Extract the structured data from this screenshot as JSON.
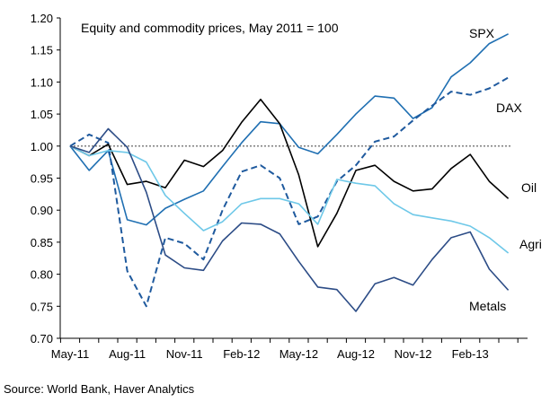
{
  "source": "Source: World Bank, Haver Analytics",
  "chart_data": {
    "type": "line",
    "title": "Equity and commodity prices, May 2011 = 100",
    "xlabel": "",
    "ylabel": "",
    "ylim": [
      0.7,
      1.2
    ],
    "yticks": [
      "0.70",
      "0.75",
      "0.80",
      "0.85",
      "0.90",
      "0.95",
      "1.00",
      "1.05",
      "1.10",
      "1.15",
      "1.20"
    ],
    "xticks": [
      "May-11",
      "Aug-11",
      "Nov-11",
      "Feb-12",
      "May-12",
      "Aug-12",
      "Nov-12",
      "Feb-13"
    ],
    "grid": false,
    "reference_line": 1.0,
    "x": [
      "2011-05",
      "2011-06",
      "2011-07",
      "2011-08",
      "2011-09",
      "2011-10",
      "2011-11",
      "2011-12",
      "2012-01",
      "2012-02",
      "2012-03",
      "2012-04",
      "2012-05",
      "2012-06",
      "2012-07",
      "2012-08",
      "2012-09",
      "2012-10",
      "2012-11",
      "2012-12",
      "2013-01",
      "2013-02",
      "2013-03",
      "2013-04"
    ],
    "series": [
      {
        "name": "SPX",
        "color": "#1f6fb2",
        "dash": false,
        "values": [
          1.0,
          0.962,
          0.993,
          0.885,
          0.877,
          0.903,
          0.917,
          0.93,
          0.968,
          1.005,
          1.038,
          1.035,
          0.998,
          0.988,
          1.018,
          1.05,
          1.078,
          1.075,
          1.043,
          1.06,
          1.108,
          1.13,
          1.16,
          1.175
        ]
      },
      {
        "name": "DAX",
        "color": "#1f5a9e",
        "dash": true,
        "values": [
          1.0,
          1.018,
          1.005,
          0.805,
          0.75,
          0.857,
          0.848,
          0.823,
          0.9,
          0.96,
          0.97,
          0.95,
          0.878,
          0.89,
          0.945,
          0.97,
          1.007,
          1.015,
          1.04,
          1.063,
          1.085,
          1.08,
          1.09,
          1.107
        ]
      },
      {
        "name": "Oil",
        "color": "#000000",
        "dash": false,
        "values": [
          1.0,
          0.985,
          1.003,
          0.94,
          0.945,
          0.935,
          0.978,
          0.968,
          0.993,
          1.037,
          1.073,
          1.035,
          0.955,
          0.843,
          0.895,
          0.962,
          0.97,
          0.945,
          0.93,
          0.933,
          0.965,
          0.987,
          0.945,
          0.918
        ]
      },
      {
        "name": "Agri",
        "color": "#6ec8e8",
        "dash": false,
        "values": [
          1.0,
          0.985,
          0.993,
          0.99,
          0.975,
          0.923,
          0.895,
          0.868,
          0.882,
          0.91,
          0.918,
          0.918,
          0.91,
          0.878,
          0.948,
          0.942,
          0.938,
          0.91,
          0.893,
          0.888,
          0.883,
          0.875,
          0.857,
          0.833
        ]
      },
      {
        "name": "Metals",
        "color": "#2c4c86",
        "dash": false,
        "values": [
          1.0,
          0.99,
          1.027,
          0.998,
          0.928,
          0.83,
          0.81,
          0.806,
          0.852,
          0.88,
          0.878,
          0.863,
          0.82,
          0.78,
          0.776,
          0.742,
          0.785,
          0.795,
          0.783,
          0.823,
          0.857,
          0.866,
          0.808,
          0.775
        ]
      }
    ]
  }
}
